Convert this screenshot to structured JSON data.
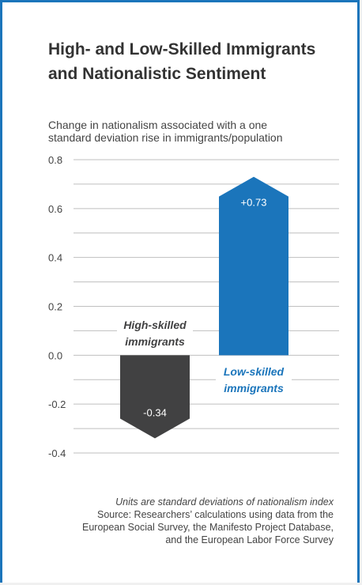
{
  "title_line1": "High- and Low-Skilled Immigrants",
  "title_line2": "and Nationalistic Sentiment",
  "subtitle_line1": "Change in nationalism associated with a one",
  "subtitle_line2": "standard deviation rise in immigrants/population",
  "footer": {
    "note": "Units are standard deviations of nationalism index",
    "source_line1": "Source: Researchers’ calculations using data from the",
    "source_line2": "European Social Survey, the Manifesto Project Database,",
    "source_line3": "and the European Labor Force Survey"
  },
  "colors": {
    "frame": "#1b75bb",
    "high_skilled": "#414142",
    "low_skilled": "#1b75bb",
    "grid": "#bfbfbf"
  },
  "chart_data": {
    "type": "bar",
    "categories": [
      "High-skilled\nimmigrants",
      "Low-skilled\nimmigrants"
    ],
    "category_lines": [
      [
        "High-skilled",
        "immigrants"
      ],
      [
        "Low-skilled",
        "immigrants"
      ]
    ],
    "values": [
      -0.34,
      0.73
    ],
    "value_labels": [
      "-0.34",
      "+0.73"
    ],
    "ylim": [
      -0.4,
      0.8
    ],
    "yticks": [
      0.8,
      0.6,
      0.4,
      0.2,
      0.0,
      -0.2,
      -0.4
    ],
    "ytick_labels": [
      "0.8",
      "0.6",
      "0.4",
      "0.2",
      "0.0",
      "-0.2",
      "-0.4"
    ],
    "grid": true
  }
}
